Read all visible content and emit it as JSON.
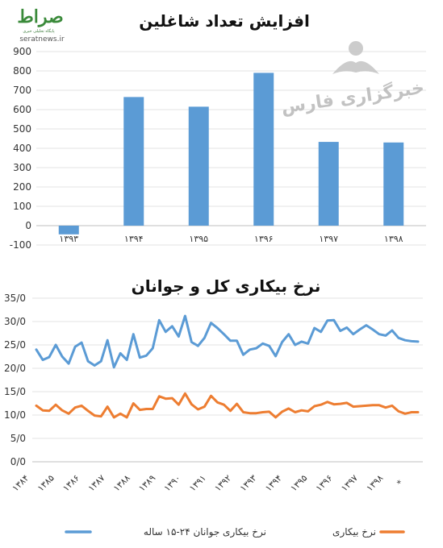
{
  "logo": {
    "name": "صراط",
    "tagline": "پایگاه تحلیلی خبری",
    "url": "seratnews.ir"
  },
  "watermark": {
    "text": "خبرگزاری فارس"
  },
  "chart_data": [
    {
      "type": "bar",
      "title": "افزایش تعداد شاغلین",
      "categories": [
        "۱۳۹۳",
        "۱۳۹۴",
        "۱۳۹۵",
        "۱۳۹۶",
        "۱۳۹۷",
        "۱۳۹۸"
      ],
      "values": [
        -45,
        665,
        615,
        790,
        433,
        430
      ],
      "ylim": [
        -100,
        900
      ],
      "yticks": [
        "-100",
        "0",
        "100",
        "200",
        "300",
        "400",
        "500",
        "600",
        "700",
        "800",
        "900"
      ],
      "grid": true,
      "color": "#5b9bd5"
    },
    {
      "type": "line",
      "title": "نرخ بیکاری کل و جوانان",
      "ylim": [
        0,
        35
      ],
      "yticks": [
        "0/0",
        "5/0",
        "10/0",
        "15/0",
        "20/0",
        "25/0",
        "30/0",
        "35/0"
      ],
      "xticks": [
        "۱۳۸۴",
        "۱۳۸۵",
        "۱۳۸۶",
        "۱۳۸۷",
        "۱۳۸۸",
        "۱۳۸۹",
        "۱۳۹۰",
        "۱۳۹۱",
        "۱۳۹۲",
        "۱۳۹۳",
        "۱۳۹۴",
        "۱۳۹۵",
        "۱۳۹۶",
        "۱۳۹۷",
        "۱۳۹۸",
        "*"
      ],
      "grid": true,
      "legend": "bottom",
      "series": [
        {
          "name": "نرخ بیکاری جوانان ۲۴-۱۵ ساله",
          "color": "#5b9bd5",
          "values": [
            24.0,
            21.8,
            22.4,
            25.0,
            22.5,
            21.0,
            24.6,
            25.5,
            21.5,
            20.6,
            21.5,
            26.0,
            20.2,
            23.2,
            21.8,
            27.3,
            22.3,
            22.7,
            24.3,
            30.3,
            27.8,
            29.0,
            26.8,
            31.2,
            25.6,
            24.8,
            26.5,
            29.7,
            28.6,
            27.3,
            25.9,
            25.9,
            22.9,
            24.0,
            24.3,
            25.3,
            24.8,
            22.6,
            25.6,
            27.3,
            25.0,
            25.7,
            25.3,
            28.6,
            27.8,
            30.2,
            30.3,
            28.0,
            28.7,
            27.3,
            28.3,
            29.2,
            28.3,
            27.3,
            27.0,
            28.1,
            26.5,
            26.0,
            25.8,
            25.7
          ]
        },
        {
          "name": "نرخ بیکاری",
          "color": "#ed7d31",
          "values": [
            12.0,
            11.0,
            10.9,
            12.2,
            11.0,
            10.3,
            11.6,
            12.0,
            10.9,
            9.9,
            9.7,
            11.8,
            9.5,
            10.3,
            9.5,
            12.5,
            11.1,
            11.3,
            11.3,
            14.0,
            13.5,
            13.6,
            12.2,
            14.6,
            12.3,
            11.2,
            11.8,
            14.1,
            12.7,
            12.2,
            10.9,
            12.4,
            10.6,
            10.4,
            10.4,
            10.6,
            10.7,
            9.5,
            10.7,
            11.4,
            10.6,
            11.0,
            10.8,
            11.9,
            12.2,
            12.8,
            12.3,
            12.4,
            12.6,
            11.8,
            11.9,
            12.0,
            12.1,
            12.1,
            11.6,
            12.0,
            10.8,
            10.3,
            10.6,
            10.6
          ]
        }
      ]
    }
  ]
}
